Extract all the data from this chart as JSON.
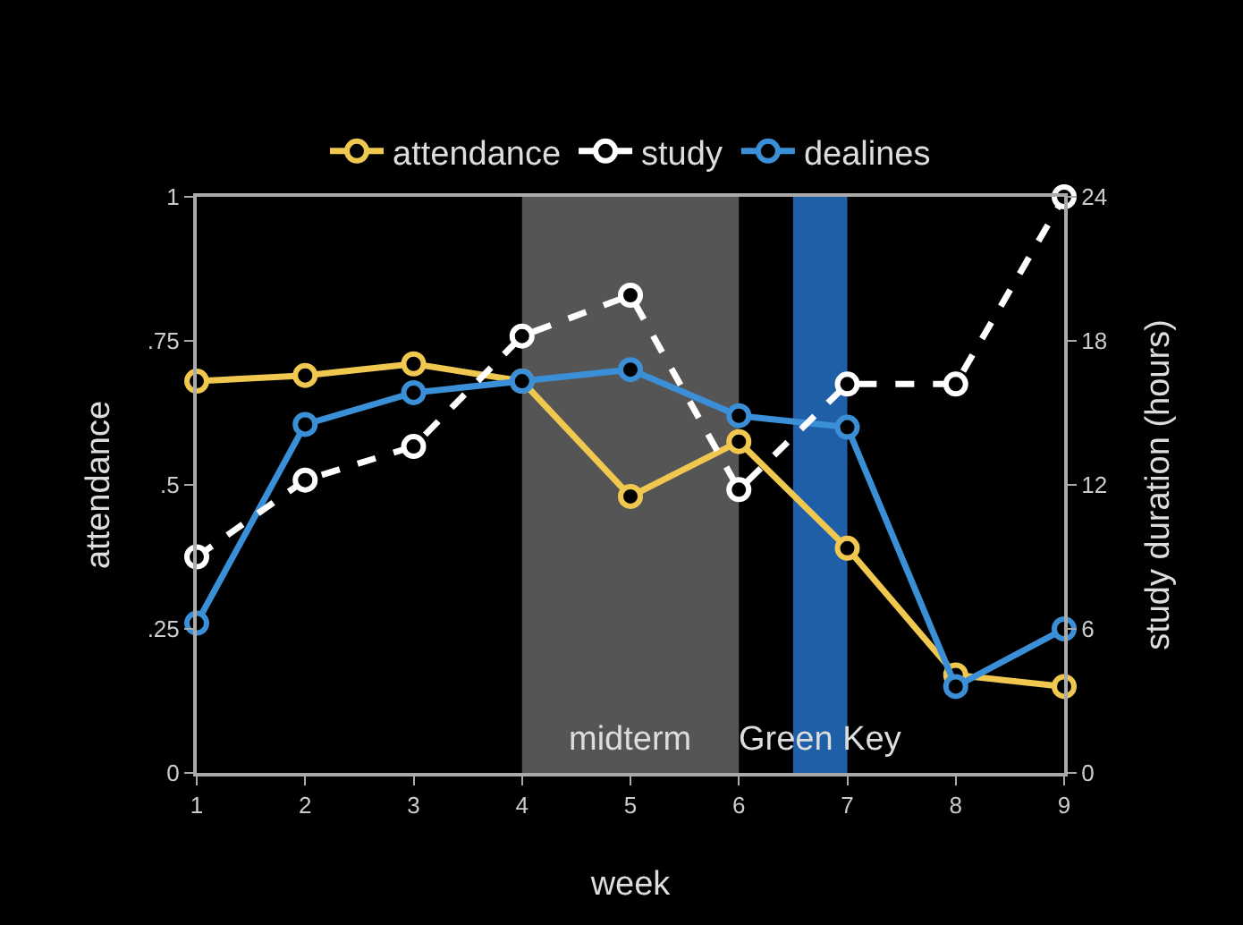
{
  "chart_data": {
    "type": "line",
    "xlabel": "week",
    "ylabel": "attendance",
    "y2label": "study duration (hours)",
    "x": [
      1,
      2,
      3,
      4,
      5,
      6,
      7,
      8,
      9
    ],
    "series": [
      {
        "name": "attendance",
        "color": "#f0c850",
        "values": [
          0.68,
          0.69,
          0.71,
          0.68,
          0.48,
          0.575,
          0.39,
          0.17,
          0.15
        ]
      },
      {
        "name": "study",
        "color": "#ffffff",
        "line_style": "dashed",
        "axis": "y2",
        "values": [
          9,
          12.2,
          13.6,
          18.2,
          19.9,
          11.8,
          16.2,
          16.2,
          24
        ]
      },
      {
        "name": "dealines",
        "color": "#3a8fd6",
        "values": [
          0.26,
          0.605,
          0.66,
          0.68,
          0.7,
          0.62,
          0.6,
          0.15,
          0.25
        ]
      }
    ],
    "xlim": [
      1,
      9
    ],
    "xticks": [
      1,
      2,
      3,
      4,
      5,
      6,
      7,
      8,
      9
    ],
    "ylim": [
      0,
      1
    ],
    "yticks": [
      0,
      {
        "value": 0.25,
        "label": ".25"
      },
      {
        "value": 0.5,
        "label": ".5"
      },
      {
        "value": 0.75,
        "label": ".75"
      },
      1
    ],
    "y2lim": [
      0,
      24
    ],
    "y2ticks": [
      0,
      6,
      12,
      18,
      24
    ],
    "bands": [
      {
        "axis": "x",
        "from": 4,
        "to": 6,
        "label": "midterm",
        "color": "#555555"
      },
      {
        "axis": "x",
        "from": 6.5,
        "to": 7,
        "label": "Green Key",
        "color": "#1f5fa8"
      }
    ],
    "marker": "circle",
    "line_style": "solid",
    "grid": false,
    "legend": "top"
  }
}
